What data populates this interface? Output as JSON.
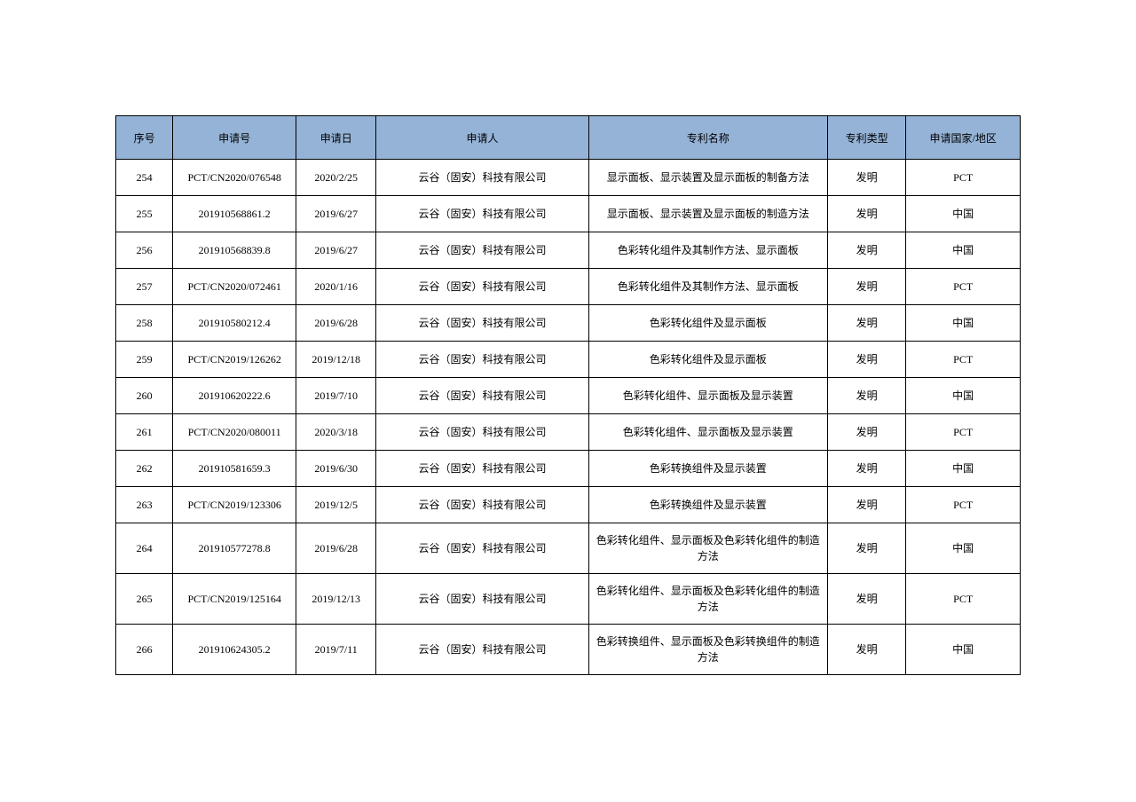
{
  "table": {
    "header_bg": "#95b3d7",
    "border_color": "#000000",
    "columns": [
      {
        "key": "seq",
        "label": "序号"
      },
      {
        "key": "appno",
        "label": "申请号"
      },
      {
        "key": "date",
        "label": "申请日"
      },
      {
        "key": "applicant",
        "label": "申请人"
      },
      {
        "key": "name",
        "label": "专利名称"
      },
      {
        "key": "type",
        "label": "专利类型"
      },
      {
        "key": "region",
        "label": "申请国家/地区"
      }
    ],
    "rows": [
      {
        "seq": "254",
        "appno": "PCT/CN2020/076548",
        "date": "2020/2/25",
        "applicant": "云谷（固安）科技有限公司",
        "name": "显示面板、显示装置及显示面板的制备方法",
        "type": "发明",
        "region": "PCT"
      },
      {
        "seq": "255",
        "appno": "201910568861.2",
        "date": "2019/6/27",
        "applicant": "云谷（固安）科技有限公司",
        "name": "显示面板、显示装置及显示面板的制造方法",
        "type": "发明",
        "region": "中国"
      },
      {
        "seq": "256",
        "appno": "201910568839.8",
        "date": "2019/6/27",
        "applicant": "云谷（固安）科技有限公司",
        "name": "色彩转化组件及其制作方法、显示面板",
        "type": "发明",
        "region": "中国"
      },
      {
        "seq": "257",
        "appno": "PCT/CN2020/072461",
        "date": "2020/1/16",
        "applicant": "云谷（固安）科技有限公司",
        "name": "色彩转化组件及其制作方法、显示面板",
        "type": "发明",
        "region": "PCT"
      },
      {
        "seq": "258",
        "appno": "201910580212.4",
        "date": "2019/6/28",
        "applicant": "云谷（固安）科技有限公司",
        "name": "色彩转化组件及显示面板",
        "type": "发明",
        "region": "中国"
      },
      {
        "seq": "259",
        "appno": "PCT/CN2019/126262",
        "date": "2019/12/18",
        "applicant": "云谷（固安）科技有限公司",
        "name": "色彩转化组件及显示面板",
        "type": "发明",
        "region": "PCT"
      },
      {
        "seq": "260",
        "appno": "201910620222.6",
        "date": "2019/7/10",
        "applicant": "云谷（固安）科技有限公司",
        "name": "色彩转化组件、显示面板及显示装置",
        "type": "发明",
        "region": "中国"
      },
      {
        "seq": "261",
        "appno": "PCT/CN2020/080011",
        "date": "2020/3/18",
        "applicant": "云谷（固安）科技有限公司",
        "name": "色彩转化组件、显示面板及显示装置",
        "type": "发明",
        "region": "PCT"
      },
      {
        "seq": "262",
        "appno": "201910581659.3",
        "date": "2019/6/30",
        "applicant": "云谷（固安）科技有限公司",
        "name": "色彩转换组件及显示装置",
        "type": "发明",
        "region": "中国"
      },
      {
        "seq": "263",
        "appno": "PCT/CN2019/123306",
        "date": "2019/12/5",
        "applicant": "云谷（固安）科技有限公司",
        "name": "色彩转换组件及显示装置",
        "type": "发明",
        "region": "PCT"
      },
      {
        "seq": "264",
        "appno": "201910577278.8",
        "date": "2019/6/28",
        "applicant": "云谷（固安）科技有限公司",
        "name": "色彩转化组件、显示面板及色彩转化组件的制造方法",
        "type": "发明",
        "region": "中国"
      },
      {
        "seq": "265",
        "appno": "PCT/CN2019/125164",
        "date": "2019/12/13",
        "applicant": "云谷（固安）科技有限公司",
        "name": "色彩转化组件、显示面板及色彩转化组件的制造方法",
        "type": "发明",
        "region": "PCT"
      },
      {
        "seq": "266",
        "appno": "201910624305.2",
        "date": "2019/7/11",
        "applicant": "云谷（固安）科技有限公司",
        "name": "色彩转换组件、显示面板及色彩转换组件的制造方法",
        "type": "发明",
        "region": "中国"
      }
    ]
  }
}
